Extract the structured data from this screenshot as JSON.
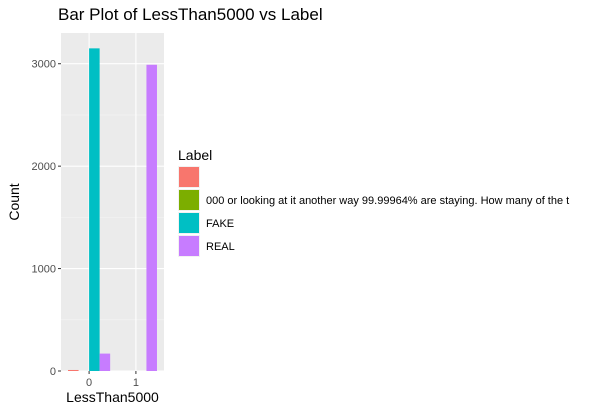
{
  "chart_data": {
    "type": "bar",
    "title": "Bar Plot of LessThan5000 vs Label",
    "xlabel": "LessThan5000",
    "ylabel": "Count",
    "categories": [
      "0",
      "1"
    ],
    "ylim": [
      0,
      3300
    ],
    "yticks": [
      0,
      1000,
      2000,
      3000
    ],
    "grid": true,
    "legend_position": "right",
    "legend_title": "Label",
    "series": [
      {
        "name": "",
        "color": "#F8766D",
        "values": [
          10,
          0
        ]
      },
      {
        "name": "000 or looking at it another way 99.99964% are staying. How many of the t",
        "color": "#7CAE00",
        "values": [
          0,
          0
        ]
      },
      {
        "name": "FAKE",
        "color": "#00BFC4",
        "values": [
          3150,
          0
        ]
      },
      {
        "name": "REAL",
        "color": "#C77CFF",
        "values": [
          170,
          2990
        ]
      }
    ]
  }
}
